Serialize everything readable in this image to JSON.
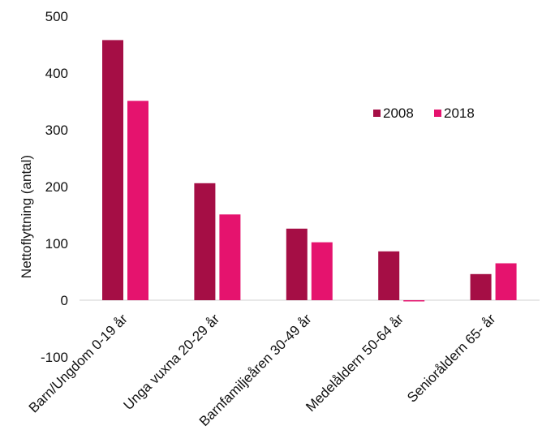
{
  "chart_data": {
    "type": "bar",
    "title": "",
    "xlabel": "",
    "ylabel": "Nettoflyttning (antal)",
    "categories": [
      "Barn/Ungdom 0-19 år",
      "Unga vuxna 20-29 år",
      "Barnfamiljeåren 30-49 år",
      "Medelåldern 50-64 år",
      "Senioråldern 65- år"
    ],
    "series": [
      {
        "name": "2008",
        "color": "#A50E45",
        "values": [
          458,
          206,
          126,
          86,
          46
        ]
      },
      {
        "name": "2018",
        "color": "#E5136E",
        "values": [
          351,
          151,
          102,
          -2,
          65
        ]
      }
    ],
    "ylim": [
      -100,
      500
    ],
    "yticks": [
      -100,
      0,
      100,
      200,
      300,
      400,
      500
    ],
    "grid": false,
    "legend": "right"
  }
}
